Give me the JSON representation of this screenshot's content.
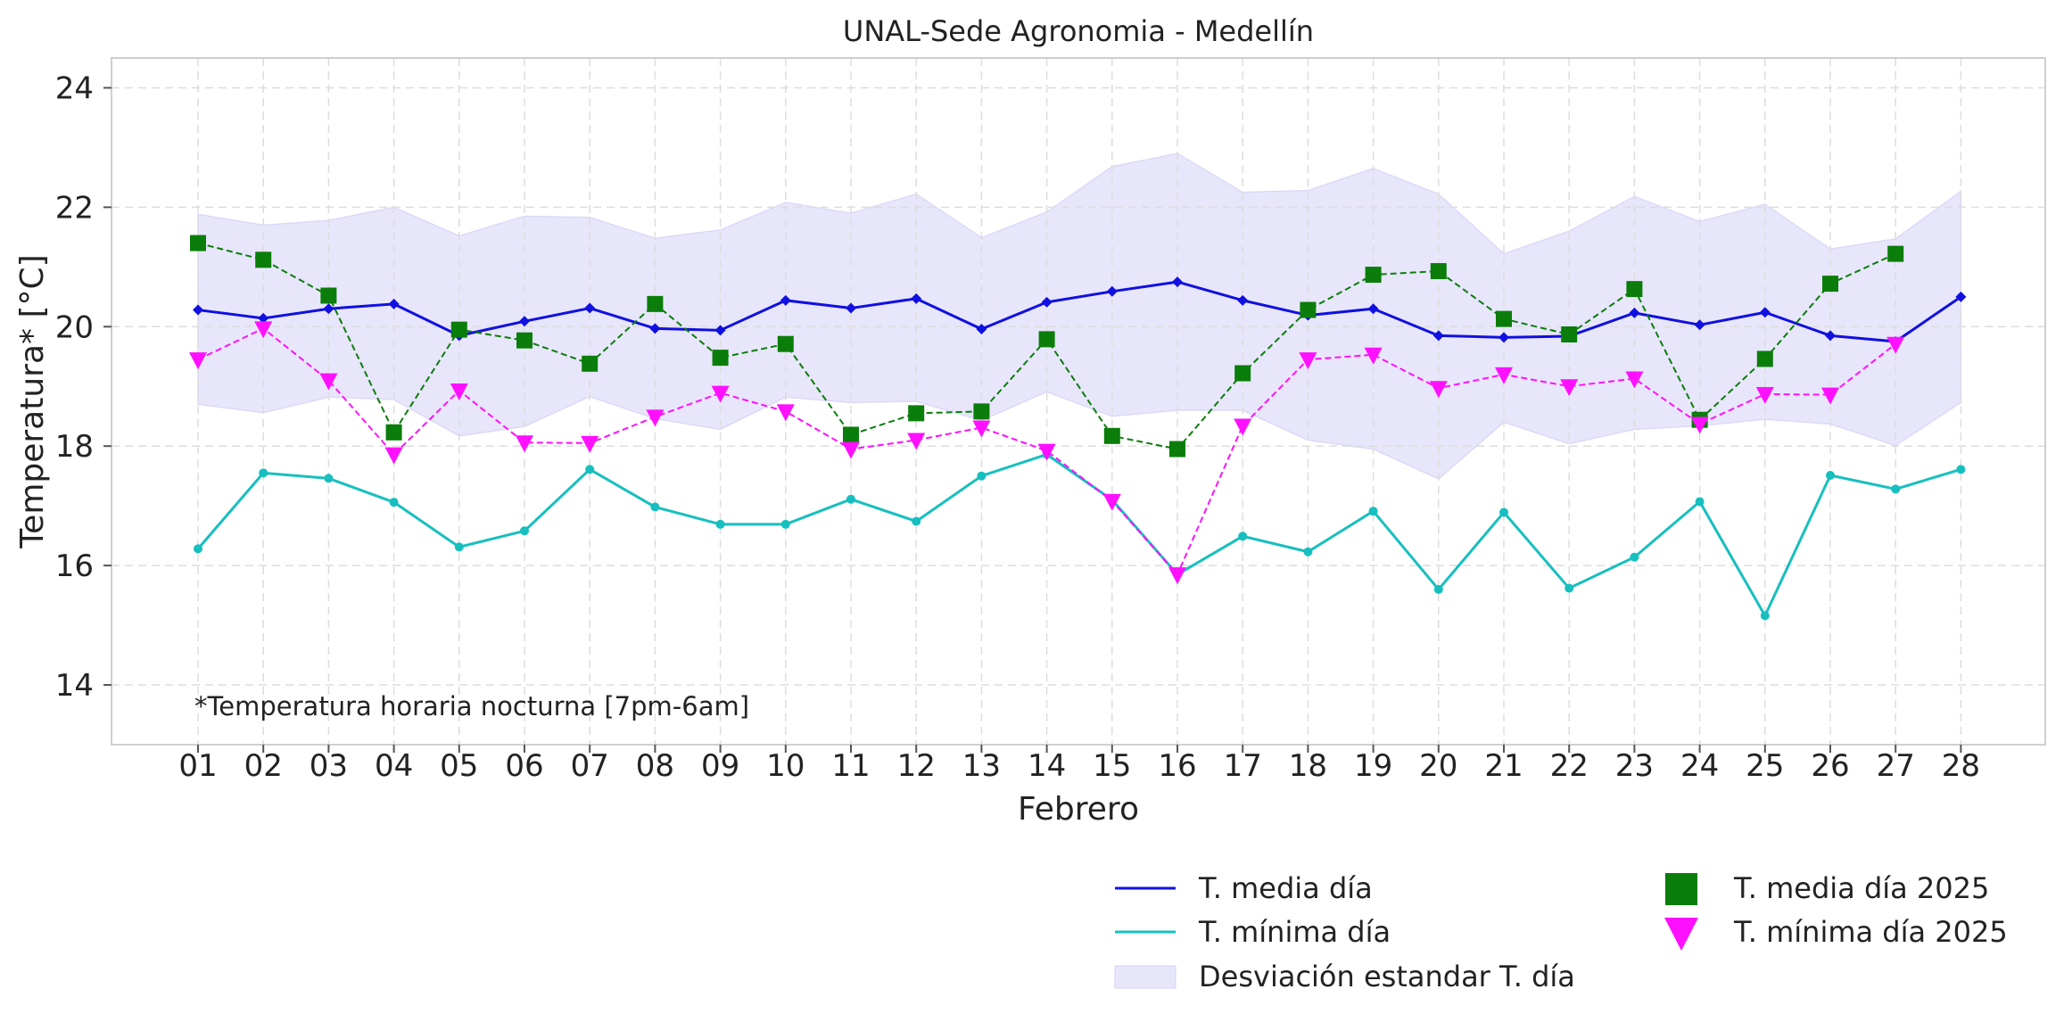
{
  "chart_data": {
    "type": "line",
    "title": "UNAL-Sede Agronomia - Medellín",
    "xlabel": "Febrero",
    "ylabel": "Temperatura* [°C]",
    "annotation": "*Temperatura horaria nocturna [7pm-6am]",
    "ylim": [
      13,
      24.5
    ],
    "yticks": [
      14,
      16,
      18,
      20,
      22,
      24
    ],
    "categories": [
      "01",
      "02",
      "03",
      "04",
      "05",
      "06",
      "07",
      "08",
      "09",
      "10",
      "11",
      "12",
      "13",
      "14",
      "15",
      "16",
      "17",
      "18",
      "19",
      "20",
      "21",
      "22",
      "23",
      "24",
      "25",
      "26",
      "27",
      "28"
    ],
    "grid": true,
    "legend_position": "bottom-right, below plot",
    "series": [
      {
        "name": "T. media día",
        "kind": "line",
        "color": "#1010e0",
        "values": [
          20.28,
          20.14,
          20.3,
          20.38,
          19.85,
          20.09,
          20.31,
          19.97,
          19.94,
          20.44,
          20.31,
          20.47,
          19.96,
          20.41,
          20.59,
          20.75,
          20.44,
          20.19,
          20.3,
          19.85,
          19.82,
          19.84,
          20.23,
          20.03,
          20.24,
          19.85,
          19.75,
          20.5
        ]
      },
      {
        "name": "T. mínima día",
        "kind": "line",
        "color": "#17bfbf",
        "values": [
          16.28,
          17.55,
          17.46,
          17.06,
          16.31,
          16.58,
          17.61,
          16.98,
          16.69,
          16.69,
          17.11,
          16.74,
          17.5,
          17.86,
          17.1,
          15.85,
          16.49,
          16.23,
          16.91,
          15.6,
          16.89,
          15.62,
          16.14,
          17.07,
          15.16,
          17.51,
          17.28,
          17.61
        ]
      },
      {
        "name": "Desviación estandar T. día",
        "kind": "band",
        "color": "#e8e6fb",
        "upper": [
          21.88,
          21.7,
          21.78,
          22.0,
          21.52,
          21.85,
          21.83,
          21.48,
          21.62,
          22.08,
          21.9,
          22.22,
          21.49,
          21.92,
          22.68,
          22.9,
          22.25,
          22.28,
          22.65,
          22.22,
          21.22,
          21.6,
          22.18,
          21.76,
          22.05,
          21.3,
          21.47,
          22.27
        ],
        "lower": [
          18.7,
          18.56,
          18.82,
          18.78,
          18.17,
          18.33,
          18.83,
          18.46,
          18.28,
          18.82,
          18.73,
          18.75,
          18.43,
          18.91,
          18.5,
          18.6,
          18.6,
          18.1,
          17.95,
          17.45,
          18.4,
          18.04,
          18.28,
          18.34,
          18.45,
          18.37,
          18.01,
          18.73
        ]
      },
      {
        "name": "T. media día 2025",
        "kind": "marker-square-dashed",
        "color": "#0a7d0a",
        "values": [
          21.4,
          21.12,
          20.52,
          18.23,
          19.95,
          19.77,
          19.38,
          20.38,
          19.48,
          19.71,
          18.19,
          18.55,
          18.58,
          19.79,
          18.17,
          17.95,
          19.22,
          20.28,
          20.87,
          20.93,
          20.13,
          19.87,
          20.63,
          18.44,
          19.46,
          20.72,
          21.22,
          null
        ]
      },
      {
        "name": "T. mínima día 2025",
        "kind": "marker-triangle-dashed",
        "color": "#ff10ff",
        "values": [
          19.45,
          19.97,
          19.1,
          17.86,
          18.93,
          18.06,
          18.05,
          18.49,
          18.89,
          18.58,
          17.95,
          18.1,
          18.31,
          17.92,
          17.08,
          15.85,
          18.34,
          19.45,
          19.53,
          18.97,
          19.2,
          19.0,
          19.13,
          18.37,
          18.87,
          18.86,
          19.71,
          null
        ]
      }
    ]
  },
  "legend": {
    "left": [
      "T. media día",
      "T. mínima día",
      "Desviación estandar T. día"
    ],
    "right": [
      "T. media día 2025",
      "T. mínima día 2025"
    ]
  }
}
